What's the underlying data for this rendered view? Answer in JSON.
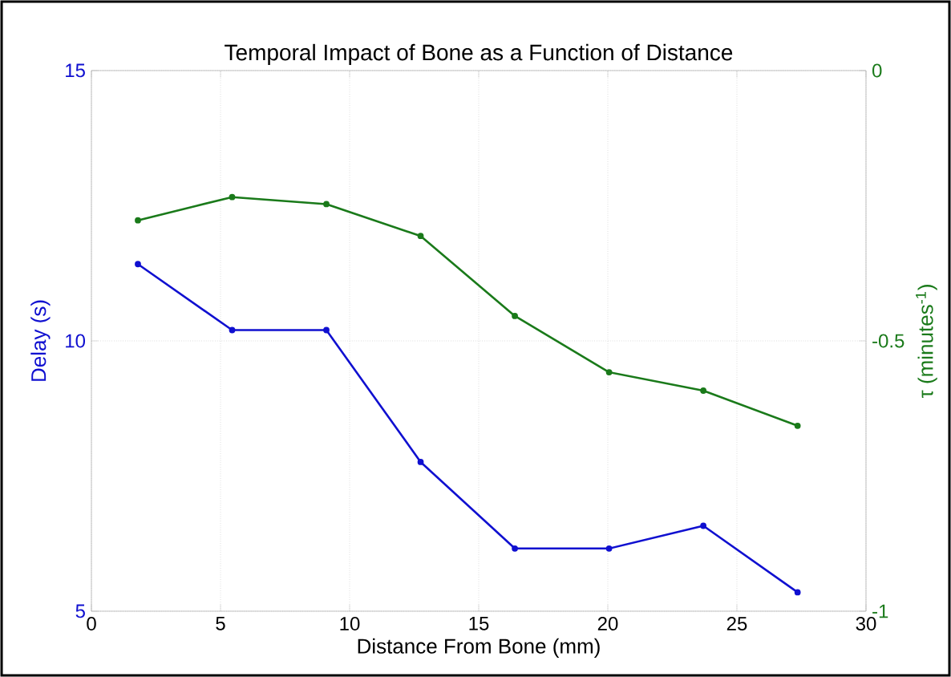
{
  "chart_data": {
    "type": "line",
    "title": "Temporal Impact of Bone as a Function of Distance",
    "xlabel": "Distance From Bone (mm)",
    "ylabel": "Delay (s)",
    "y2label": "τ (minutes$^{-1}$)",
    "x": [
      1.8,
      5.45,
      9.1,
      12.75,
      16.4,
      20.05,
      23.7,
      27.35
    ],
    "series": [
      {
        "color": "#1010d0",
        "values": [
          11.42,
          10.2,
          10.2,
          7.76,
          6.16,
          6.16,
          6.58,
          5.35
        ]
      },
      {
        "color": "#1a7a1a",
        "axis": "y2",
        "values": [
          -0.277,
          -0.234,
          -0.247,
          -0.306,
          -0.454,
          -0.558,
          -0.592,
          -0.657
        ]
      }
    ],
    "xlim": [
      0,
      30
    ],
    "xticks": [
      0,
      5,
      10,
      15,
      20,
      25,
      30
    ],
    "ylim": [
      5,
      15
    ],
    "yticks": [
      5,
      10,
      15
    ],
    "y2lim": [
      -1,
      0
    ],
    "y2ticks": [
      -1,
      -0.5,
      0
    ],
    "grid": true,
    "marker": "circle",
    "line_style": "solid"
  }
}
